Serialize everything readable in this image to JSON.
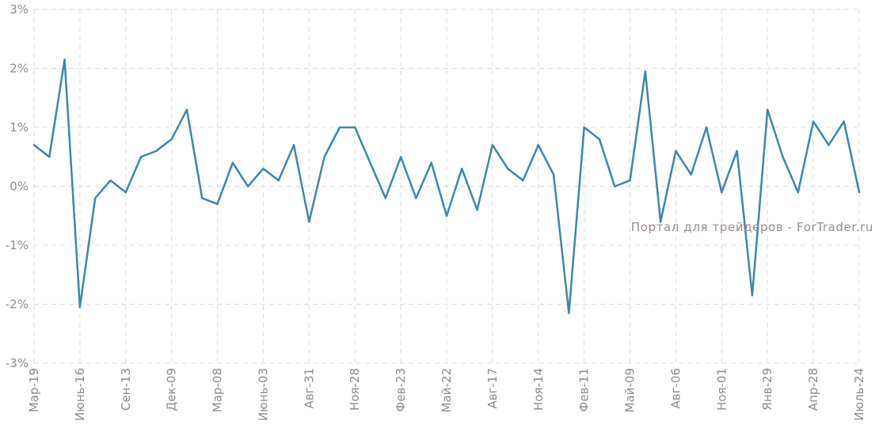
{
  "watermark": "Портал для трейдеров - ForTrader.ru",
  "colors": {
    "line": "#3d87a8",
    "grid": "#dcdcdc",
    "text": "#8c8c8c",
    "watermark": "#9a8c8c"
  },
  "chart_data": {
    "type": "line",
    "title": "",
    "xlabel": "",
    "ylabel": "",
    "ylim": [
      -3,
      3
    ],
    "yticks": [
      {
        "value": 3,
        "label": "3%"
      },
      {
        "value": 2,
        "label": "2%"
      },
      {
        "value": 1,
        "label": "1%"
      },
      {
        "value": 0,
        "label": "0%"
      },
      {
        "value": -1,
        "label": "-1%"
      },
      {
        "value": -2,
        "label": "-2%"
      },
      {
        "value": -3,
        "label": "-3%"
      }
    ],
    "xticks": [
      {
        "index": 0,
        "label": "Мар-19"
      },
      {
        "index": 3,
        "label": "Июнь-16"
      },
      {
        "index": 6,
        "label": "Сен-13"
      },
      {
        "index": 9,
        "label": "Дек-09"
      },
      {
        "index": 12,
        "label": "Мар-08"
      },
      {
        "index": 15,
        "label": "Июнь-03"
      },
      {
        "index": 18,
        "label": "Авг-31"
      },
      {
        "index": 21,
        "label": "Ноя-28"
      },
      {
        "index": 24,
        "label": "Фев-23"
      },
      {
        "index": 27,
        "label": "Май-22"
      },
      {
        "index": 30,
        "label": "Авг-17"
      },
      {
        "index": 33,
        "label": "Ноя-14"
      },
      {
        "index": 36,
        "label": "Фев-11"
      },
      {
        "index": 39,
        "label": "Май-09"
      },
      {
        "index": 42,
        "label": "Авг-06"
      },
      {
        "index": 45,
        "label": "Ноя-01"
      },
      {
        "index": 48,
        "label": "Янв-29"
      },
      {
        "index": 51,
        "label": "Апр-28"
      },
      {
        "index": 54,
        "label": "Июль-24"
      }
    ],
    "grid": true,
    "legend": "none",
    "series": [
      {
        "values": [
          0.7,
          0.5,
          2.15,
          -2.05,
          -0.2,
          0.1,
          -0.1,
          0.5,
          0.6,
          0.8,
          1.3,
          -0.2,
          -0.3,
          0.4,
          0.0,
          0.3,
          0.1,
          0.7,
          -0.6,
          0.5,
          1.0,
          1.0,
          0.4,
          -0.2,
          0.5,
          -0.2,
          0.4,
          -0.5,
          0.3,
          -0.4,
          0.7,
          0.3,
          0.1,
          0.7,
          0.2,
          -2.15,
          1.0,
          0.8,
          0.0,
          0.1,
          1.95,
          -0.6,
          0.6,
          0.2,
          1.0,
          -0.1,
          0.6,
          -1.85,
          1.3,
          0.5,
          -0.1,
          1.1,
          0.7,
          1.1,
          -0.1
        ]
      }
    ]
  }
}
